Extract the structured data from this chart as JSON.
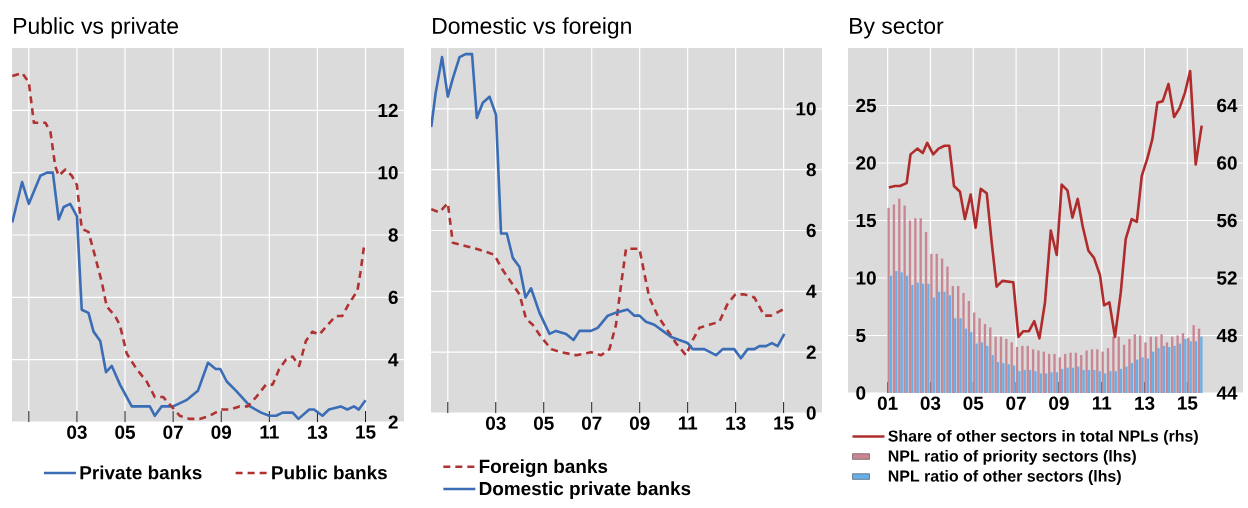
{
  "chart_data": [
    {
      "type": "line",
      "title": "Public vs private",
      "xlim": [
        2000.3,
        2016.6
      ],
      "xticks": [
        {
          "value": 2001,
          "label": null
        },
        {
          "value": 2003,
          "label": "03"
        },
        {
          "value": 2005,
          "label": "05"
        },
        {
          "value": 2007,
          "label": "07"
        },
        {
          "value": 2009,
          "label": "09"
        },
        {
          "value": 2011,
          "label": "11"
        },
        {
          "value": 2013,
          "label": "13"
        },
        {
          "value": 2015,
          "label": "15"
        }
      ],
      "ylim": [
        2,
        14
      ],
      "yticks": [
        2,
        4,
        6,
        8,
        10,
        12
      ],
      "grid": true,
      "legend": "bottom",
      "series": [
        {
          "name": "Private banks",
          "color": "#3a6db5",
          "line_style": "solid",
          "x": [
            2000.31,
            2000.72,
            2001.0,
            2001.48,
            2001.76,
            2002.0,
            2002.24,
            2002.45,
            2002.72,
            2003.0,
            2003.2,
            2003.48,
            2003.69,
            2003.97,
            2004.21,
            2004.45,
            2004.79,
            2005.28,
            2005.76,
            2006.03,
            2006.24,
            2006.52,
            2007.0,
            2007.55,
            2008.03,
            2008.45,
            2008.77,
            2008.96,
            2009.23,
            2009.62,
            2009.97,
            2010.2,
            2010.66,
            2011.0,
            2011.28,
            2011.55,
            2011.97,
            2012.21,
            2012.66,
            2012.86,
            2013.21,
            2013.48,
            2013.97,
            2014.24,
            2014.52,
            2014.72,
            2015.0
          ],
          "values": [
            8.4,
            9.7,
            9.0,
            9.9,
            10.0,
            10.0,
            8.5,
            8.9,
            9.0,
            8.6,
            5.6,
            5.5,
            4.9,
            4.6,
            3.6,
            3.8,
            3.2,
            2.5,
            2.5,
            2.5,
            2.2,
            2.5,
            2.5,
            2.7,
            3.0,
            3.9,
            3.7,
            3.7,
            3.3,
            3.0,
            2.7,
            2.5,
            2.3,
            2.2,
            2.2,
            2.3,
            2.3,
            2.1,
            2.4,
            2.4,
            2.2,
            2.4,
            2.5,
            2.4,
            2.5,
            2.4,
            2.7
          ]
        },
        {
          "name": "Public banks",
          "color": "#b03232",
          "line_style": "dashed",
          "x": [
            2000.31,
            2000.72,
            2001.0,
            2001.21,
            2001.69,
            2001.9,
            2002.1,
            2002.24,
            2002.52,
            2002.79,
            2003.0,
            2003.2,
            2003.48,
            2003.76,
            2004.03,
            2004.24,
            2004.59,
            2004.79,
            2005.07,
            2005.48,
            2005.9,
            2006.24,
            2006.59,
            2006.93,
            2007.28,
            2007.69,
            2008.1,
            2008.52,
            2009.0,
            2009.34,
            2009.76,
            2010.1,
            2010.45,
            2010.86,
            2011.14,
            2011.41,
            2011.69,
            2011.97,
            2012.24,
            2012.52,
            2012.79,
            2013.07,
            2013.41,
            2013.76,
            2014.03,
            2014.31,
            2014.66,
            2014.79,
            2014.93
          ],
          "values": [
            13.1,
            13.2,
            12.9,
            11.6,
            11.6,
            11.3,
            10.2,
            9.9,
            10.1,
            9.9,
            9.6,
            8.2,
            8.1,
            7.3,
            6.5,
            5.7,
            5.4,
            5.1,
            4.2,
            3.7,
            3.3,
            2.8,
            2.8,
            2.5,
            2.2,
            2.1,
            2.1,
            2.2,
            2.4,
            2.4,
            2.5,
            2.5,
            2.8,
            3.2,
            3.2,
            3.7,
            4.0,
            4.1,
            3.8,
            4.6,
            4.9,
            4.8,
            5.1,
            5.4,
            5.4,
            5.8,
            6.2,
            6.8,
            7.6
          ]
        }
      ]
    },
    {
      "type": "line",
      "title": "Domestic vs foreign",
      "xlim": [
        2000.3,
        2016.6
      ],
      "xticks": [
        {
          "value": 2001,
          "label": null
        },
        {
          "value": 2003,
          "label": "03"
        },
        {
          "value": 2005,
          "label": "05"
        },
        {
          "value": 2007,
          "label": "07"
        },
        {
          "value": 2009,
          "label": "09"
        },
        {
          "value": 2011,
          "label": "11"
        },
        {
          "value": 2013,
          "label": "13"
        },
        {
          "value": 2015,
          "label": "15"
        }
      ],
      "ylim": [
        0,
        12
      ],
      "yticks": [
        0,
        2,
        4,
        6,
        8,
        10
      ],
      "grid": true,
      "legend": "bottom",
      "series": [
        {
          "name": "Foreign banks",
          "color": "#b03232",
          "line_style": "dashed",
          "x": [
            2000.31,
            2000.65,
            2001.0,
            2001.21,
            2001.69,
            2002.18,
            2002.6,
            2002.94,
            2003.29,
            2003.64,
            2003.99,
            2004.26,
            2004.54,
            2004.89,
            2005.31,
            2005.72,
            2006.35,
            2006.97,
            2007.39,
            2007.74,
            2008.01,
            2008.22,
            2008.43,
            2008.99,
            2009.19,
            2009.4,
            2009.75,
            2010.17,
            2010.51,
            2010.93,
            2011.21,
            2011.49,
            2011.9,
            2012.32,
            2012.67,
            2012.99,
            2013.36,
            2013.78,
            2014.19,
            2014.47,
            2014.96
          ],
          "values": [
            6.7,
            6.6,
            6.9,
            5.6,
            5.5,
            5.4,
            5.3,
            5.2,
            4.7,
            4.3,
            3.9,
            3.1,
            2.9,
            2.5,
            2.1,
            2.0,
            1.9,
            2.0,
            1.9,
            2.1,
            2.9,
            4.2,
            5.4,
            5.4,
            4.6,
            3.8,
            3.2,
            2.7,
            2.3,
            1.9,
            2.4,
            2.8,
            2.9,
            3.0,
            3.6,
            3.9,
            3.9,
            3.8,
            3.2,
            3.2,
            3.4
          ]
        },
        {
          "name": "Domestic private banks",
          "color": "#3a6db5",
          "line_style": "solid",
          "x": [
            2000.31,
            2000.49,
            2000.76,
            2001.0,
            2001.21,
            2001.49,
            2001.74,
            2002.01,
            2002.21,
            2002.46,
            2002.74,
            2003.01,
            2003.22,
            2003.46,
            2003.71,
            2003.99,
            2004.24,
            2004.47,
            2004.82,
            2005.24,
            2005.51,
            2005.93,
            2006.24,
            2006.49,
            2006.97,
            2007.25,
            2007.67,
            2008.01,
            2008.5,
            2008.78,
            2008.99,
            2009.26,
            2009.61,
            2009.96,
            2010.31,
            2010.65,
            2011.0,
            2011.21,
            2011.69,
            2012.18,
            2012.46,
            2012.94,
            2013.22,
            2013.5,
            2013.78,
            2013.99,
            2014.26,
            2014.51,
            2014.75,
            2015.03
          ],
          "values": [
            9.4,
            10.5,
            11.7,
            10.4,
            11.0,
            11.7,
            11.8,
            11.8,
            9.7,
            10.2,
            10.4,
            9.8,
            5.9,
            5.9,
            5.1,
            4.8,
            3.8,
            4.1,
            3.3,
            2.6,
            2.7,
            2.6,
            2.4,
            2.7,
            2.7,
            2.8,
            3.2,
            3.3,
            3.4,
            3.2,
            3.2,
            3.0,
            2.9,
            2.7,
            2.5,
            2.4,
            2.3,
            2.1,
            2.1,
            1.9,
            2.1,
            2.1,
            1.8,
            2.1,
            2.1,
            2.2,
            2.2,
            2.3,
            2.2,
            2.6
          ]
        }
      ]
    },
    {
      "type": "bar",
      "title": "By sector",
      "xlim": [
        1999.15,
        2017.6
      ],
      "xticks": [
        {
          "value": 2001,
          "label": "01"
        },
        {
          "value": 2003,
          "label": "03"
        },
        {
          "value": 2005,
          "label": "05"
        },
        {
          "value": 2007,
          "label": "07"
        },
        {
          "value": 2009,
          "label": "09"
        },
        {
          "value": 2011,
          "label": "11"
        },
        {
          "value": 2013,
          "label": "13"
        },
        {
          "value": 2015,
          "label": "15"
        }
      ],
      "ylim": [
        0,
        30
      ],
      "yticks": [
        0,
        5,
        10,
        15,
        20,
        25
      ],
      "y2lim": [
        44,
        68
      ],
      "y2ticks": [
        44,
        48,
        52,
        56,
        60,
        64
      ],
      "grid": true,
      "legend": "bottom",
      "x": [
        2001.1,
        2001.35,
        2001.6,
        2001.85,
        2002.1,
        2002.35,
        2002.6,
        2002.85,
        2003.1,
        2003.35,
        2003.6,
        2003.85,
        2004.1,
        2004.35,
        2004.6,
        2004.85,
        2005.1,
        2005.35,
        2005.6,
        2005.85,
        2006.1,
        2006.35,
        2006.6,
        2006.85,
        2007.1,
        2007.35,
        2007.6,
        2007.85,
        2008.1,
        2008.35,
        2008.6,
        2008.85,
        2009.1,
        2009.35,
        2009.6,
        2009.85,
        2010.1,
        2010.35,
        2010.6,
        2010.85,
        2011.1,
        2011.35,
        2011.6,
        2011.85,
        2012.1,
        2012.35,
        2012.6,
        2012.85,
        2013.1,
        2013.35,
        2013.6,
        2013.85,
        2014.1,
        2014.35,
        2014.6,
        2014.85,
        2015.1,
        2015.35,
        2015.6
      ],
      "series": [
        {
          "name": "Share of other sectors in total NPLs (rhs)",
          "type": "line",
          "axis": "y2",
          "color": "#b02c2c",
          "x": [
            2001.06,
            2001.34,
            2001.58,
            2001.89,
            2002.07,
            2002.39,
            2002.64,
            2002.85,
            2003.13,
            2003.38,
            2003.66,
            2003.88,
            2004.1,
            2004.38,
            2004.61,
            2004.88,
            2005.11,
            2005.35,
            2005.63,
            2005.86,
            2006.09,
            2006.36,
            2006.87,
            2007.11,
            2007.34,
            2007.6,
            2007.85,
            2008.09,
            2008.35,
            2008.62,
            2008.9,
            2009.13,
            2009.4,
            2009.63,
            2009.88,
            2010.11,
            2010.38,
            2010.64,
            2010.92,
            2011.11,
            2011.36,
            2011.62,
            2011.89,
            2012.12,
            2012.4,
            2012.64,
            2012.87,
            2013.13,
            2013.37,
            2013.6,
            2013.85,
            2014.12,
            2014.38,
            2014.63,
            2014.89,
            2015.13,
            2015.39,
            2015.67
          ],
          "values": [
            58.3,
            58.4,
            58.4,
            58.6,
            60.6,
            61.0,
            60.7,
            61.4,
            60.6,
            61.0,
            61.2,
            61.2,
            58.4,
            58.0,
            56.1,
            57.8,
            55.5,
            58.2,
            57.9,
            54.5,
            51.4,
            51.8,
            51.7,
            47.9,
            48.3,
            48.3,
            49.0,
            47.8,
            50.3,
            55.3,
            53.6,
            58.5,
            58.1,
            56.2,
            57.5,
            55.6,
            53.9,
            53.4,
            52.2,
            50.1,
            50.3,
            47.9,
            51.0,
            54.7,
            56.1,
            55.9,
            59.1,
            60.3,
            61.7,
            64.2,
            64.3,
            65.5,
            63.2,
            63.8,
            64.9,
            66.4,
            59.9,
            62.6
          ]
        },
        {
          "name": "NPL ratio of priority sectors (lhs)",
          "color": "#c98793",
          "values": [
            16.1,
            16.4,
            16.9,
            16.3,
            15.0,
            15.2,
            15.2,
            14.0,
            12.1,
            12.1,
            11.7,
            11.0,
            9.3,
            9.3,
            8.7,
            8.0,
            7.0,
            6.5,
            6.0,
            5.7,
            4.9,
            4.9,
            4.7,
            4.4,
            4.0,
            4.1,
            4.1,
            3.8,
            3.7,
            3.6,
            3.4,
            3.4,
            3.1,
            3.4,
            3.5,
            3.5,
            3.3,
            3.7,
            3.8,
            3.8,
            3.6,
            3.9,
            4.9,
            4.9,
            4.2,
            4.7,
            5.1,
            5.0,
            4.4,
            4.9,
            4.9,
            5.1,
            4.4,
            4.9,
            5.0,
            5.2,
            4.8,
            5.9,
            5.6
          ]
        },
        {
          "name": "NPL ratio of other sectors (lhs)",
          "color": "#6aaee6",
          "values": [
            10.2,
            10.6,
            10.5,
            10.2,
            9.4,
            9.6,
            9.5,
            9.5,
            8.3,
            8.8,
            8.8,
            8.5,
            6.5,
            6.5,
            5.6,
            5.3,
            4.3,
            4.4,
            4.1,
            3.3,
            2.7,
            2.6,
            2.5,
            2.4,
            1.9,
            2.0,
            2.0,
            1.9,
            1.7,
            1.7,
            1.8,
            1.8,
            2.1,
            2.2,
            2.2,
            2.3,
            2.0,
            2.0,
            2.0,
            1.9,
            1.7,
            1.9,
            1.9,
            2.1,
            2.3,
            2.6,
            2.9,
            3.1,
            3.0,
            3.6,
            3.9,
            4.1,
            4.0,
            4.1,
            4.3,
            4.7,
            4.5,
            4.5,
            4.9
          ]
        }
      ]
    }
  ]
}
